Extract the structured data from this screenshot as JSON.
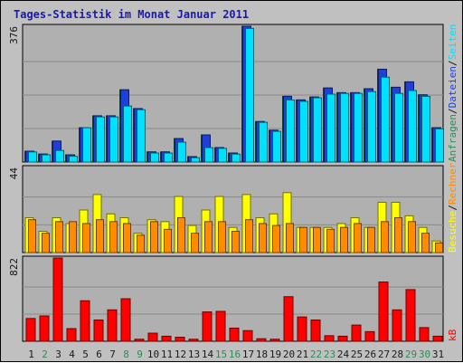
{
  "chart_data": {
    "type": "bar",
    "title": "Tages-Statistik im Monat Januar 2011",
    "categories": [
      "1",
      "2",
      "3",
      "4",
      "5",
      "6",
      "7",
      "8",
      "9",
      "10",
      "11",
      "12",
      "13",
      "14",
      "15",
      "16",
      "17",
      "18",
      "19",
      "20",
      "21",
      "22",
      "23",
      "24",
      "25",
      "26",
      "27",
      "28",
      "29",
      "30",
      "31"
    ],
    "weekend_days": [
      "2",
      "8",
      "9",
      "15",
      "16",
      "22",
      "23",
      "29",
      "30"
    ],
    "colors": {
      "background": "#c0c0c0",
      "plot": "#b0b0b0",
      "weekday_label": "#1a1a1a",
      "weekend_label": "#2e8b57",
      "Anfragen": "#2e8b57",
      "Dateien": "#1f3fdc",
      "Seiten": "#00e0ff",
      "Besuche": "#ffff00",
      "Rechner": "#ff8c00",
      "kB": "#ff0000"
    },
    "panels": [
      {
        "ymax": 376,
        "ytick_label": "376",
        "series": [
          {
            "name": "Anfragen",
            "values": [
              30,
              22,
              58,
              20,
              95,
              128,
              128,
              200,
              148,
              28,
              28,
              65,
              15,
              75,
              40,
              25,
              376,
              112,
              88,
              182,
              172,
              180,
              205,
              192,
              192,
              203,
              257,
              207,
              222,
              186,
              95
            ]
          },
          {
            "name": "Dateien",
            "values": [
              30,
              22,
              58,
              20,
              95,
              128,
              128,
              200,
              148,
              28,
              28,
              65,
              15,
              75,
              40,
              25,
              376,
              112,
              88,
              182,
              172,
              180,
              205,
              192,
              192,
              203,
              257,
              207,
              222,
              186,
              95
            ]
          },
          {
            "name": "Seiten",
            "values": [
              28,
              20,
              32,
              16,
              95,
              125,
              125,
              155,
              145,
              25,
              25,
              55,
              12,
              40,
              38,
              22,
              370,
              110,
              85,
              172,
              168,
              178,
              188,
              190,
              190,
              195,
              235,
              190,
              198,
              182,
              92
            ]
          }
        ]
      },
      {
        "ymax": 44,
        "ytick_label": "44",
        "series": [
          {
            "name": "Besuche",
            "values": [
              18,
              11,
              18,
              15,
              22,
              30,
              20,
              18,
              10,
              17,
              16,
              29,
              14,
              22,
              29,
              13,
              30,
              18,
              20,
              31,
              13,
              13,
              13,
              15,
              18,
              13,
              26,
              26,
              19,
              13,
              6
            ]
          },
          {
            "name": "Rechner",
            "values": [
              17,
              10,
              16,
              16,
              15,
              17,
              16,
              15,
              9,
              16,
              12,
              18,
              10,
              16,
              16,
              11,
              17,
              15,
              14,
              15,
              13,
              13,
              12,
              13,
              15,
              13,
              16,
              18,
              16,
              10,
              5
            ]
          }
        ]
      },
      {
        "ymax": 822,
        "ytick_label": "822",
        "series": [
          {
            "name": "kB",
            "values": [
              225,
              250,
              822,
              125,
              400,
              210,
              310,
              420,
              20,
              80,
              50,
              40,
              20,
              290,
              295,
              130,
              105,
              25,
              20,
              440,
              240,
              210,
              55,
              50,
              160,
              95,
              585,
              310,
              510,
              135,
              50
            ]
          }
        ]
      }
    ],
    "legend_right": [
      [
        {
          "name": "Anfragen"
        },
        {
          "name": "/"
        },
        {
          "name": "Dateien"
        },
        {
          "name": "/"
        },
        {
          "name": "Seiten"
        }
      ],
      [
        {
          "name": "Besuche"
        },
        {
          "name": "/"
        },
        {
          "name": "Rechner"
        }
      ],
      [
        {
          "name": "kB"
        }
      ]
    ]
  }
}
